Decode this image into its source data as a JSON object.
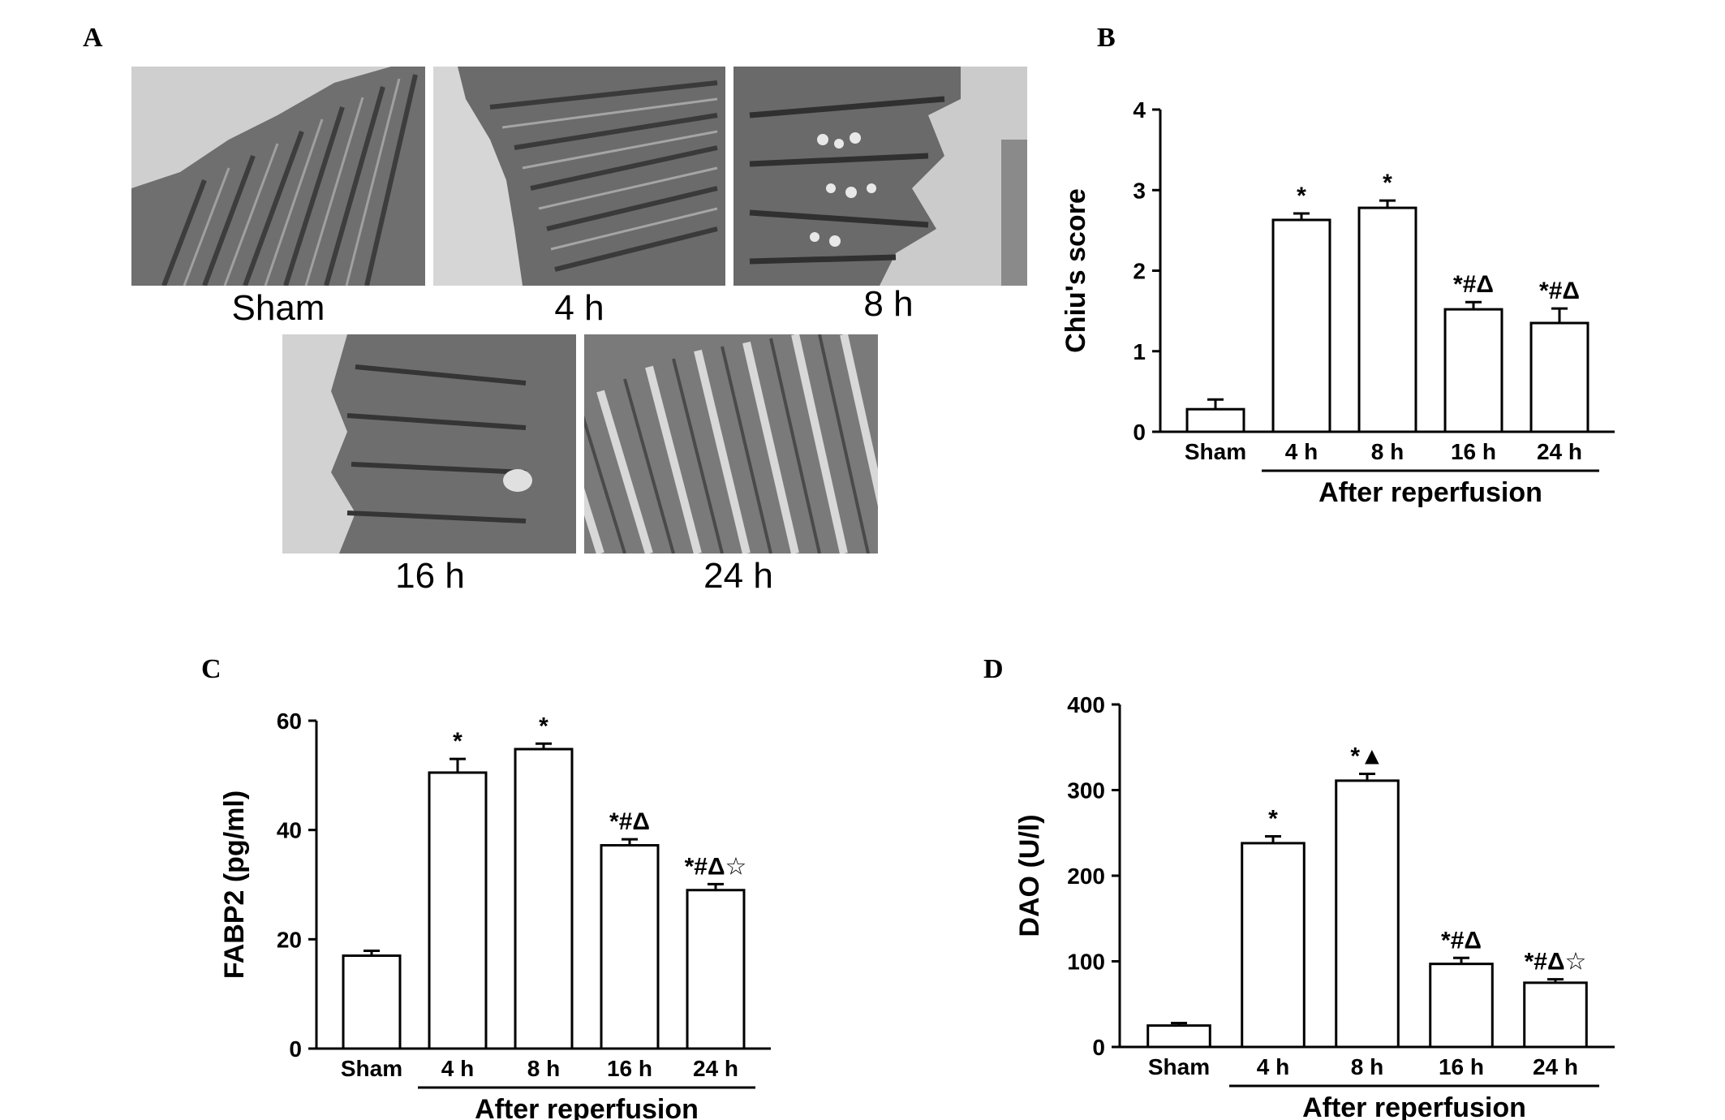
{
  "panels": {
    "a": {
      "letter": "A",
      "images": [
        {
          "label": "Sham"
        },
        {
          "label": "4 h"
        },
        {
          "label": "8 h"
        },
        {
          "label": "16 h"
        },
        {
          "label": "24 h"
        }
      ]
    },
    "b": {
      "letter": "B"
    },
    "c": {
      "letter": "C"
    },
    "d": {
      "letter": "D"
    }
  },
  "chart_data": [
    {
      "type": "bar",
      "panel": "B",
      "categories": [
        "Sham",
        "4 h",
        "8 h",
        "16 h",
        "24 h"
      ],
      "values": [
        0.28,
        2.63,
        2.78,
        1.52,
        1.35
      ],
      "errors": [
        0.12,
        0.08,
        0.09,
        0.09,
        0.18
      ],
      "annotations": [
        "",
        "*",
        "*",
        "*#Δ",
        "*#Δ"
      ],
      "ylabel": "Chiu's score",
      "xlabel": "After reperfusion",
      "ylim": [
        0,
        4
      ],
      "yticks": [
        0,
        1,
        2,
        3,
        4
      ],
      "grid": false
    },
    {
      "type": "bar",
      "panel": "C",
      "categories": [
        "Sham",
        "4 h",
        "8 h",
        "16 h",
        "24 h"
      ],
      "values": [
        17,
        50.5,
        54.8,
        37.2,
        29.0
      ],
      "errors": [
        0.9,
        2.5,
        1.0,
        1.1,
        1.1
      ],
      "annotations": [
        "",
        "*",
        "*",
        "*#Δ",
        "*#Δ☆"
      ],
      "ylabel": "FABP2 (pg/ml)",
      "xlabel": "After reperfusion",
      "ylim": [
        0,
        60
      ],
      "yticks": [
        0,
        20,
        40,
        60
      ],
      "grid": false
    },
    {
      "type": "bar",
      "panel": "D",
      "categories": [
        "Sham",
        "4 h",
        "8 h",
        "16 h",
        "24 h"
      ],
      "values": [
        25,
        238,
        311,
        97,
        75
      ],
      "errors": [
        3,
        8,
        8,
        7,
        4
      ],
      "annotations": [
        "",
        "*",
        "*▲",
        "*#Δ",
        "*#Δ☆"
      ],
      "ylabel": "DAO (U/l)",
      "xlabel": "After reperfusion",
      "ylim": [
        0,
        400
      ],
      "yticks": [
        0,
        100,
        200,
        300,
        400
      ],
      "grid": false
    }
  ]
}
